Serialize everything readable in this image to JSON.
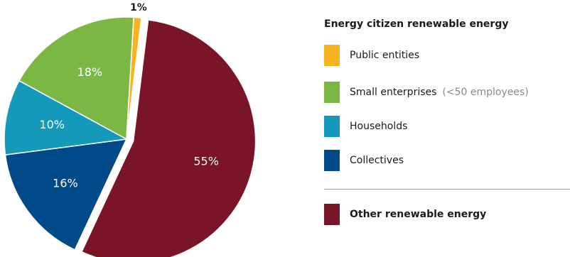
{
  "chart_data": {
    "type": "pie",
    "legend_title": "Energy citizen renewable energy",
    "slices": [
      {
        "name": "Other renewable energy",
        "value": 55,
        "label": "55%",
        "color": "#7a1528",
        "exploded": true
      },
      {
        "name": "Collectives",
        "value": 16,
        "label": "16%",
        "color": "#004a8a"
      },
      {
        "name": "Households",
        "value": 10,
        "label": "10%",
        "color": "#1599bb"
      },
      {
        "name": "Small enterprises",
        "value": 18,
        "label": "18%",
        "color": "#7ab843"
      },
      {
        "name": "Public entities",
        "value": 1,
        "label": "1%",
        "color": "#f8b322"
      }
    ],
    "legend": {
      "placement": "right",
      "items": [
        {
          "label": "Public entities",
          "note": "",
          "color": "#f8b322"
        },
        {
          "label": "Small enterprises",
          "note": "(<50 employees)",
          "color": "#7ab843"
        },
        {
          "label": "Households",
          "note": "",
          "color": "#1599bb"
        },
        {
          "label": "Collectives",
          "note": "",
          "color": "#004a8a"
        }
      ],
      "other": {
        "label": "Other renewable energy",
        "color": "#7a1528"
      }
    }
  }
}
